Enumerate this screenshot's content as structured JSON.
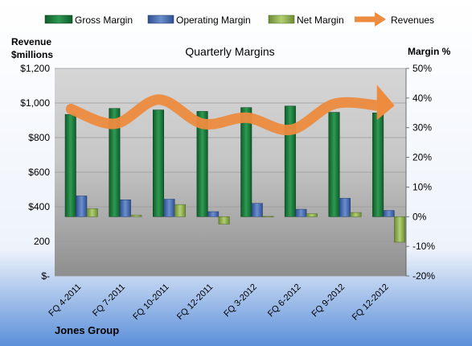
{
  "chart_data": {
    "type": "bar",
    "title": "Quarterly Margins",
    "left_axis_title": [
      "Revenue",
      "$millions"
    ],
    "right_axis_title": "Margin %",
    "company": "Jones Group",
    "categories": [
      "FQ 4-2011",
      "FQ 7-2011",
      "FQ 10-2011",
      "FQ 12-2011",
      "FQ 3-2012",
      "FQ 6-2012",
      "FQ 9-2012",
      "FQ 12-2012"
    ],
    "left_ticks": [
      {
        "value": 0,
        "label": "$-"
      },
      {
        "value": 200,
        "label": "200"
      },
      {
        "value": 400,
        "label": "$400"
      },
      {
        "value": 600,
        "label": "$600"
      },
      {
        "value": 800,
        "label": "$800"
      },
      {
        "value": 1000,
        "label": "$1,000"
      },
      {
        "value": 1200,
        "label": "$1,200"
      }
    ],
    "right_ticks": [
      {
        "value": -20,
        "label": "-20%"
      },
      {
        "value": -10,
        "label": "-10%"
      },
      {
        "value": 0,
        "label": "0%"
      },
      {
        "value": 10,
        "label": "10%"
      },
      {
        "value": 20,
        "label": "20%"
      },
      {
        "value": 30,
        "label": "30%"
      },
      {
        "value": 40,
        "label": "40%"
      },
      {
        "value": 50,
        "label": "50%"
      }
    ],
    "ylim_left": [
      0,
      1200
    ],
    "ylim_right": [
      -20,
      50
    ],
    "series": [
      {
        "name": "Gross Margin",
        "axis": "right",
        "kind": "bar",
        "color": "#1f7a3c",
        "values": [
          34.5,
          36.5,
          36.0,
          35.5,
          36.8,
          37.3,
          35.2,
          35.0
        ]
      },
      {
        "name": "Operating Margin",
        "axis": "right",
        "kind": "bar",
        "color": "#4a6fb5",
        "values": [
          7.0,
          5.7,
          5.9,
          1.7,
          4.5,
          2.5,
          6.2,
          2.1
        ]
      },
      {
        "name": "Net Margin",
        "axis": "right",
        "kind": "bar",
        "color": "#8fae4f",
        "values": [
          2.7,
          0.5,
          4.1,
          -2.5,
          0.1,
          1.0,
          1.4,
          -8.6
        ]
      },
      {
        "name": "Revenues",
        "axis": "left",
        "kind": "line",
        "color": "#ed8b3e",
        "values": [
          965,
          880,
          1020,
          880,
          915,
          845,
          995,
          985
        ]
      }
    ],
    "legend_position": "top",
    "grid": true
  }
}
